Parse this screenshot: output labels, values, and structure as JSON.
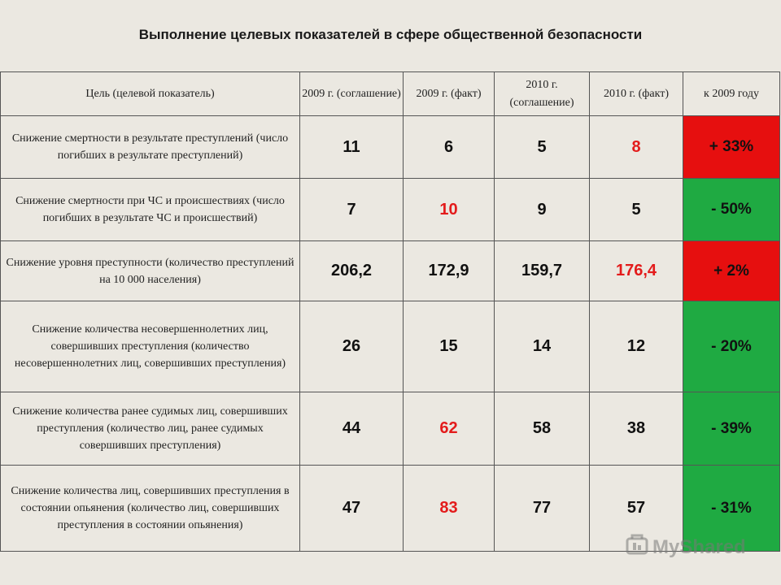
{
  "title": "Выполнение целевых показателей  в сфере общественной  безопасности",
  "table": {
    "headers": [
      "Цель (целевой показатель)",
      "2009 г. (соглашение)",
      "2009 г.  (факт)",
      "2010 г. (соглашение)",
      "2010 г.  (факт)",
      "к 2009 году"
    ],
    "rows": [
      {
        "goal": "Снижение смертности в результате преступлений (число погибших в результате преступлений)",
        "v2009plan": "11",
        "v2009fact": "6",
        "v2010plan": "5",
        "v2010fact": "8",
        "delta": "+ 33%"
      },
      {
        "goal": "Снижение смертности при ЧС  и происшествиях (число погибших в результате ЧС и происшествий)",
        "v2009plan": "7",
        "v2009fact": "10",
        "v2010plan": "9",
        "v2010fact": "5",
        "delta": "- 50%"
      },
      {
        "goal": "Снижение уровня преступности (количество преступлений на 10 000 населения)",
        "v2009plan": "206,2",
        "v2009fact": "172,9",
        "v2010plan": "159,7",
        "v2010fact": "176,4",
        "delta": "+ 2%"
      },
      {
        "goal": "Снижение количества несовершеннолетних лиц, совершивших преступления (количество несовершеннолетних лиц, совершивших преступления)",
        "v2009plan": "26",
        "v2009fact": "15",
        "v2010plan": "14",
        "v2010fact": "12",
        "delta": "- 20%"
      },
      {
        "goal": "Снижение количества ранее судимых лиц, совершивших преступления (количество лиц, ранее судимых совершивших преступления)",
        "v2009plan": "44",
        "v2009fact": "62",
        "v2010plan": "58",
        "v2010fact": "38",
        "delta": "- 39%"
      },
      {
        "goal": "Снижение количества лиц, совершивших преступления в состоянии опьянения (количество лиц, совершивших преступления в состоянии опьянения)",
        "v2009plan": "47",
        "v2009fact": "83",
        "v2010plan": "77",
        "v2010fact": "57",
        "delta": "- 31%"
      }
    ]
  },
  "colors": {
    "highlight_red_text": "#e31b1b",
    "increase_cell": "#e60f0f",
    "decrease_cell": "#1faa42"
  },
  "watermark": {
    "text": "MyShared",
    "icon": "myshared-logo-icon"
  }
}
